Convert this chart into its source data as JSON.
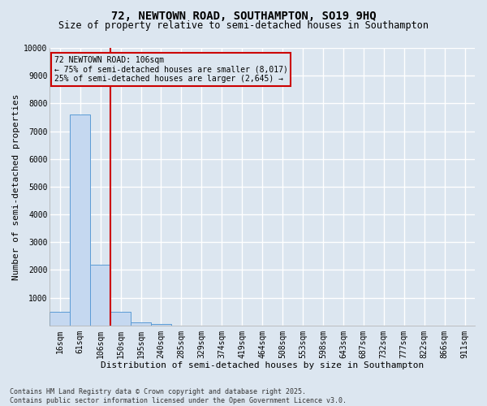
{
  "title_line1": "72, NEWTOWN ROAD, SOUTHAMPTON, SO19 9HQ",
  "title_line2": "Size of property relative to semi-detached houses in Southampton",
  "xlabel": "Distribution of semi-detached houses by size in Southampton",
  "ylabel": "Number of semi-detached properties",
  "footer_line1": "Contains HM Land Registry data © Crown copyright and database right 2025.",
  "footer_line2": "Contains public sector information licensed under the Open Government Licence v3.0.",
  "annotation_line1": "72 NEWTOWN ROAD: 106sqm",
  "annotation_line2": "← 75% of semi-detached houses are smaller (8,017)",
  "annotation_line3": "25% of semi-detached houses are larger (2,645) →",
  "categories": [
    "16sqm",
    "61sqm",
    "106sqm",
    "150sqm",
    "195sqm",
    "240sqm",
    "285sqm",
    "329sqm",
    "374sqm",
    "419sqm",
    "464sqm",
    "508sqm",
    "553sqm",
    "598sqm",
    "643sqm",
    "687sqm",
    "732sqm",
    "777sqm",
    "822sqm",
    "866sqm",
    "911sqm"
  ],
  "values": [
    500,
    7600,
    2200,
    500,
    120,
    60,
    0,
    0,
    0,
    0,
    0,
    0,
    0,
    0,
    0,
    0,
    0,
    0,
    0,
    0,
    0
  ],
  "bar_color": "#c5d8f0",
  "bar_edge_color": "#5b9bd5",
  "vline_color": "#cc0000",
  "ylim": [
    0,
    10000
  ],
  "yticks": [
    0,
    1000,
    2000,
    3000,
    4000,
    5000,
    6000,
    7000,
    8000,
    9000,
    10000
  ],
  "bg_color": "#dce6f0",
  "grid_color": "#ffffff",
  "annotation_box_color": "#cc0000",
  "title_fontsize": 10,
  "subtitle_fontsize": 8.5,
  "axis_label_fontsize": 8,
  "tick_fontsize": 7,
  "footer_fontsize": 6
}
